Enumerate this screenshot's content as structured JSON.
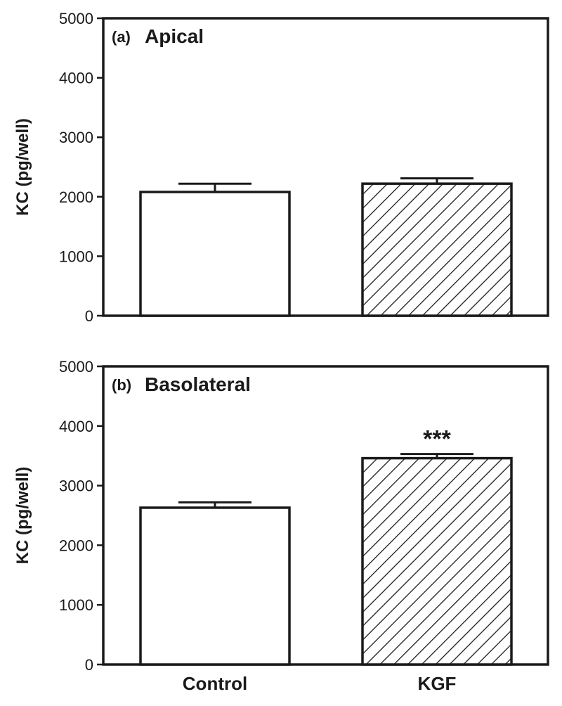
{
  "chart_data": [
    {
      "type": "bar",
      "panel_label": "(a)",
      "title": "Apical",
      "ylabel": "KC (pg/well)",
      "xlabel": "",
      "ylim": [
        0,
        5000
      ],
      "yticks": [
        0,
        1000,
        2000,
        3000,
        4000,
        5000
      ],
      "categories": [
        "Control",
        "KGF"
      ],
      "values": [
        2080,
        2220
      ],
      "errors": [
        140,
        90
      ],
      "fills": [
        "none",
        "diagonal-hatch"
      ],
      "annotations": [
        "",
        ""
      ],
      "grid": false
    },
    {
      "type": "bar",
      "panel_label": "(b)",
      "title": "Basolateral",
      "ylabel": "KC (pg/well)",
      "xlabel": "",
      "ylim": [
        0,
        5000
      ],
      "yticks": [
        0,
        1000,
        2000,
        3000,
        4000,
        5000
      ],
      "categories": [
        "Control",
        "KGF"
      ],
      "values": [
        2630,
        3460
      ],
      "errors": [
        90,
        70
      ],
      "fills": [
        "none",
        "diagonal-hatch"
      ],
      "annotations": [
        "",
        "***"
      ],
      "grid": false
    }
  ],
  "colors": {
    "ink": "#1a1a1a",
    "background": "#ffffff"
  }
}
